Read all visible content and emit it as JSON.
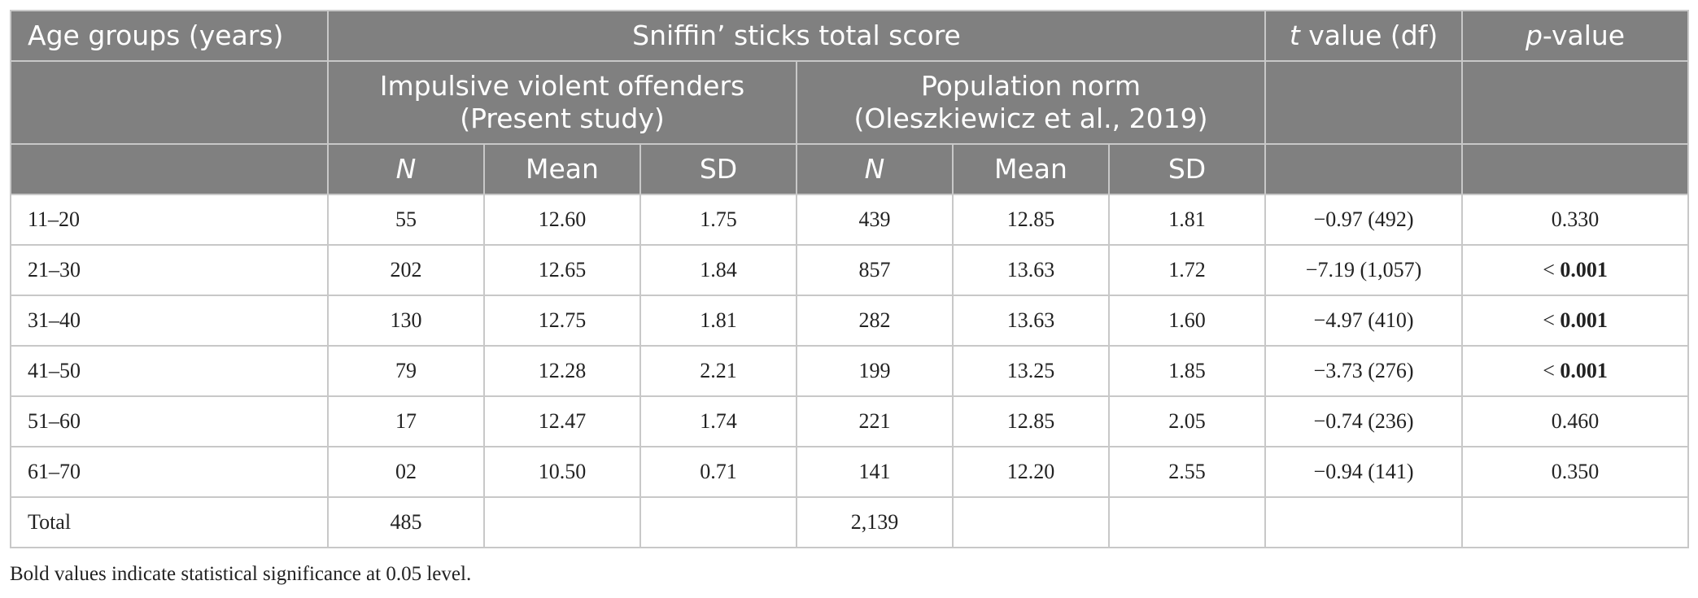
{
  "header": {
    "age_groups": "Age groups (years)",
    "sniffin_total": "Sniffin’ sticks total score",
    "t_value_italic": "t",
    "t_value_rest": " value (df)",
    "p_value_italic": "p",
    "p_value_rest": "-value",
    "group1_line1": "Impulsive violent offenders",
    "group1_line2": "(Present study)",
    "group2_line1": "Population norm",
    "group2_line2": "(Oleszkiewicz et al., 2019)",
    "col_n": "N",
    "col_mean": "Mean",
    "col_sd": "SD"
  },
  "rows": [
    {
      "age": "11–20",
      "n1": "55",
      "mean1": "12.60",
      "sd1": "1.75",
      "n2": "439",
      "mean2": "12.85",
      "sd2": "1.81",
      "t": "−0.97 (492)",
      "p_prefix": "",
      "p": "0.330"
    },
    {
      "age": "21–30",
      "n1": "202",
      "mean1": "12.65",
      "sd1": "1.84",
      "n2": "857",
      "mean2": "13.63",
      "sd2": "1.72",
      "t": "−7.19 (1,057)",
      "p_prefix": "< ",
      "p": "0.001"
    },
    {
      "age": "31–40",
      "n1": "130",
      "mean1": "12.75",
      "sd1": "1.81",
      "n2": "282",
      "mean2": "13.63",
      "sd2": "1.60",
      "t": "−4.97 (410)",
      "p_prefix": "< ",
      "p": "0.001"
    },
    {
      "age": "41–50",
      "n1": "79",
      "mean1": "12.28",
      "sd1": "2.21",
      "n2": "199",
      "mean2": "13.25",
      "sd2": "1.85",
      "t": "−3.73 (276)",
      "p_prefix": "< ",
      "p": "0.001"
    },
    {
      "age": "51–60",
      "n1": "17",
      "mean1": "12.47",
      "sd1": "1.74",
      "n2": "221",
      "mean2": "12.85",
      "sd2": "2.05",
      "t": "−0.74 (236)",
      "p_prefix": "",
      "p": "0.460"
    },
    {
      "age": "61–70",
      "n1": "02",
      "mean1": "10.50",
      "sd1": "0.71",
      "n2": "141",
      "mean2": "12.20",
      "sd2": "2.55",
      "t": "−0.94 (141)",
      "p_prefix": "",
      "p": "0.350"
    }
  ],
  "total_row": {
    "label": "Total",
    "n1": "485",
    "n2": "2,139"
  },
  "footnote": "Bold values indicate statistical significance at 0.05 level."
}
